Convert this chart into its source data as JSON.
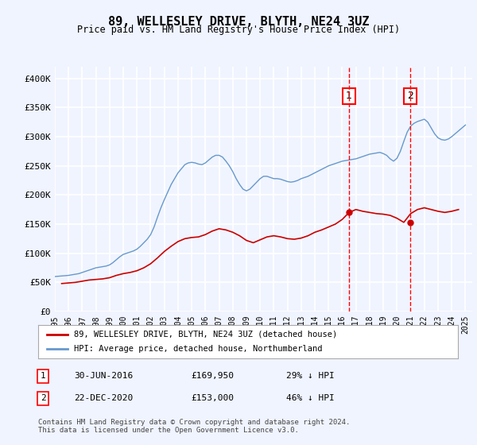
{
  "title": "89, WELLESLEY DRIVE, BLYTH, NE24 3UZ",
  "subtitle": "Price paid vs. HM Land Registry's House Price Index (HPI)",
  "ylabel_ticks": [
    "£0",
    "£50K",
    "£100K",
    "£150K",
    "£200K",
    "£250K",
    "£300K",
    "£350K",
    "£400K"
  ],
  "ylim": [
    0,
    420000
  ],
  "xlim_start": 1995.0,
  "xlim_end": 2025.5,
  "background_color": "#f0f4ff",
  "plot_bg_color": "#f0f4ff",
  "grid_color": "#ffffff",
  "red_line_color": "#cc0000",
  "blue_line_color": "#6699cc",
  "marker1_x": 2016.5,
  "marker2_x": 2020.97,
  "marker1_y": 169950,
  "marker2_y": 153000,
  "legend_label_red": "89, WELLESLEY DRIVE, BLYTH, NE24 3UZ (detached house)",
  "legend_label_blue": "HPI: Average price, detached house, Northumberland",
  "table_row1": [
    "1",
    "30-JUN-2016",
    "£169,950",
    "29% ↓ HPI"
  ],
  "table_row2": [
    "2",
    "22-DEC-2020",
    "£153,000",
    "46% ↓ HPI"
  ],
  "footer": "Contains HM Land Registry data © Crown copyright and database right 2024.\nThis data is licensed under the Open Government Licence v3.0.",
  "hpi_years": [
    1995.0,
    1995.25,
    1995.5,
    1995.75,
    1996.0,
    1996.25,
    1996.5,
    1996.75,
    1997.0,
    1997.25,
    1997.5,
    1997.75,
    1998.0,
    1998.25,
    1998.5,
    1998.75,
    1999.0,
    1999.25,
    1999.5,
    1999.75,
    2000.0,
    2000.25,
    2000.5,
    2000.75,
    2001.0,
    2001.25,
    2001.5,
    2001.75,
    2002.0,
    2002.25,
    2002.5,
    2002.75,
    2003.0,
    2003.25,
    2003.5,
    2003.75,
    2004.0,
    2004.25,
    2004.5,
    2004.75,
    2005.0,
    2005.25,
    2005.5,
    2005.75,
    2006.0,
    2006.25,
    2006.5,
    2006.75,
    2007.0,
    2007.25,
    2007.5,
    2007.75,
    2008.0,
    2008.25,
    2008.5,
    2008.75,
    2009.0,
    2009.25,
    2009.5,
    2009.75,
    2010.0,
    2010.25,
    2010.5,
    2010.75,
    2011.0,
    2011.25,
    2011.5,
    2011.75,
    2012.0,
    2012.25,
    2012.5,
    2012.75,
    2013.0,
    2013.25,
    2013.5,
    2013.75,
    2014.0,
    2014.25,
    2014.5,
    2014.75,
    2015.0,
    2015.25,
    2015.5,
    2015.75,
    2016.0,
    2016.25,
    2016.5,
    2016.75,
    2017.0,
    2017.25,
    2017.5,
    2017.75,
    2018.0,
    2018.25,
    2018.5,
    2018.75,
    2019.0,
    2019.25,
    2019.5,
    2019.75,
    2020.0,
    2020.25,
    2020.5,
    2020.75,
    2021.0,
    2021.25,
    2021.5,
    2021.75,
    2022.0,
    2022.25,
    2022.5,
    2022.75,
    2023.0,
    2023.25,
    2023.5,
    2023.75,
    2024.0,
    2024.25,
    2024.5,
    2024.75,
    2025.0
  ],
  "hpi_values": [
    60000,
    60500,
    61000,
    61500,
    62000,
    63000,
    64000,
    65000,
    67000,
    69000,
    71000,
    73000,
    75000,
    76000,
    77000,
    78000,
    80000,
    84000,
    89000,
    94000,
    98000,
    100000,
    102000,
    104000,
    107000,
    112000,
    118000,
    124000,
    132000,
    145000,
    162000,
    178000,
    192000,
    205000,
    218000,
    228000,
    238000,
    245000,
    252000,
    255000,
    256000,
    255000,
    253000,
    252000,
    255000,
    260000,
    265000,
    268000,
    268000,
    265000,
    258000,
    250000,
    240000,
    228000,
    218000,
    210000,
    207000,
    210000,
    216000,
    222000,
    228000,
    232000,
    232000,
    230000,
    228000,
    228000,
    227000,
    225000,
    223000,
    222000,
    223000,
    225000,
    228000,
    230000,
    232000,
    235000,
    238000,
    241000,
    244000,
    247000,
    250000,
    252000,
    254000,
    256000,
    258000,
    259000,
    260000,
    261000,
    262000,
    264000,
    266000,
    268000,
    270000,
    271000,
    272000,
    273000,
    271000,
    268000,
    262000,
    258000,
    263000,
    275000,
    292000,
    308000,
    318000,
    323000,
    326000,
    328000,
    330000,
    325000,
    315000,
    305000,
    298000,
    295000,
    294000,
    296000,
    300000,
    305000,
    310000,
    315000,
    320000
  ],
  "red_years": [
    1995.5,
    1996.0,
    1996.5,
    1997.0,
    1997.5,
    1998.0,
    1998.5,
    1999.0,
    1999.5,
    2000.0,
    2000.5,
    2001.0,
    2001.5,
    2002.0,
    2002.5,
    2003.0,
    2003.5,
    2004.0,
    2004.5,
    2005.0,
    2005.5,
    2006.0,
    2006.5,
    2007.0,
    2007.5,
    2008.0,
    2008.5,
    2009.0,
    2009.5,
    2010.0,
    2010.5,
    2011.0,
    2011.5,
    2012.0,
    2012.5,
    2013.0,
    2013.5,
    2014.0,
    2014.5,
    2015.0,
    2015.5,
    2016.0,
    2016.5,
    2017.0,
    2017.5,
    2018.0,
    2018.5,
    2019.0,
    2019.5,
    2020.0,
    2020.5,
    2021.0,
    2021.5,
    2022.0,
    2022.5,
    2023.0,
    2023.5,
    2024.0,
    2024.5
  ],
  "red_values": [
    48000,
    49000,
    50000,
    52000,
    54000,
    55000,
    56000,
    58000,
    62000,
    65000,
    67000,
    70000,
    75000,
    82000,
    92000,
    103000,
    112000,
    120000,
    125000,
    127000,
    128000,
    132000,
    138000,
    142000,
    140000,
    136000,
    130000,
    122000,
    118000,
    123000,
    128000,
    130000,
    128000,
    125000,
    124000,
    126000,
    130000,
    136000,
    140000,
    145000,
    150000,
    158000,
    169950,
    175000,
    172000,
    170000,
    168000,
    167000,
    165000,
    160000,
    153000,
    168000,
    175000,
    178000,
    175000,
    172000,
    170000,
    172000,
    175000
  ]
}
